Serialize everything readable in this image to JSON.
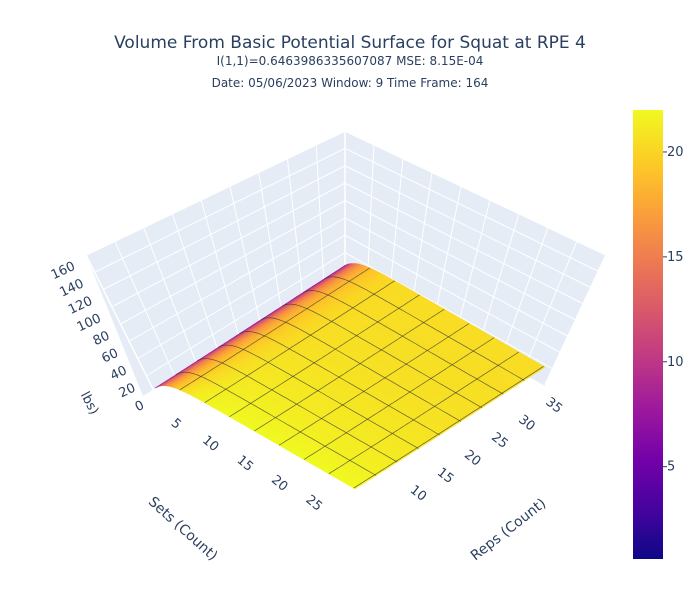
{
  "chart": {
    "title": "Volume From Basic Potential Surface for Squat at RPE 4",
    "subtitle_line1": "I(1,1)=0.6463986335607087  MSE: 8.15E-04",
    "subtitle_line2": "Date: 05/06/2023  Window: 9  Time Frame: 164"
  },
  "chart_data": {
    "type": "surface",
    "title": "Volume From Basic Potential Surface for Squat at RPE 4",
    "subtitle": "I(1,1)=0.6463986335607087  MSE: 8.15E-04 | Date: 05/06/2023  Window: 9  Time Frame: 164",
    "axes": {
      "x": {
        "label": "Sets (Count)",
        "ticks": [
          "5",
          "10",
          "15",
          "20",
          "25"
        ],
        "range": [
          1,
          30
        ]
      },
      "y": {
        "label": "Reps (Count)",
        "ticks": [
          "10",
          "15",
          "20",
          "25",
          "30",
          "35"
        ],
        "range": [
          1,
          36
        ]
      },
      "z": {
        "label": "Volume (lbs)",
        "label_visible": "lbs)",
        "ticks": [
          "0",
          "20",
          "40",
          "60",
          "80",
          "100",
          "120",
          "140",
          "160"
        ],
        "range": [
          0,
          160
        ]
      }
    },
    "colorbar": {
      "ticks": [
        "5",
        "10",
        "15",
        "20"
      ],
      "range": [
        0.6,
        22
      ],
      "colorscale": "Plasma",
      "colors": [
        "#0d0887",
        "#46039f",
        "#7201a8",
        "#9c179e",
        "#bd3786",
        "#d8576b",
        "#ed7953",
        "#fb9f3a",
        "#fdca26",
        "#f0f921"
      ]
    },
    "surface": {
      "plateau_value": 20.5,
      "peak_value": 22,
      "minimum_value": 0.6,
      "description_values": "value rises steeply from near 0 at 1 set to ~20 plateau; slight peak toward low reps"
    }
  }
}
